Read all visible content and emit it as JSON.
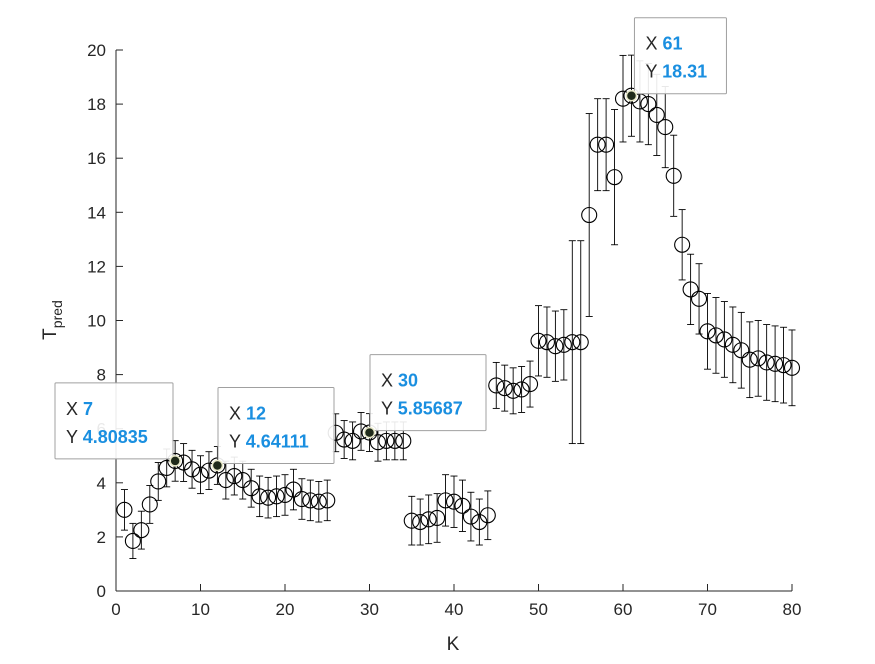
{
  "chart_data": {
    "type": "scatter",
    "title": "",
    "xlabel": "K",
    "ylabel": {
      "main": "T",
      "sub": "pred"
    },
    "xlim": [
      0,
      80
    ],
    "ylim": [
      0,
      20
    ],
    "xticks": [
      0,
      10,
      20,
      30,
      40,
      50,
      60,
      70,
      80
    ],
    "yticks": [
      0,
      2,
      4,
      6,
      8,
      10,
      12,
      14,
      16,
      18,
      20
    ],
    "grid": false,
    "marker": "open-circle",
    "error_bars": true,
    "colors": {
      "marker": "#000000",
      "axis": "#262626",
      "tip_value": "#1a8fe0",
      "tip_border": "#a0a0a0"
    },
    "points": [
      {
        "x": 1,
        "y": 3.0,
        "err": 0.75
      },
      {
        "x": 2,
        "y": 1.85,
        "err": 0.65
      },
      {
        "x": 3,
        "y": 2.25,
        "err": 0.7
      },
      {
        "x": 4,
        "y": 3.2,
        "err": 0.7
      },
      {
        "x": 5,
        "y": 4.05,
        "err": 0.7
      },
      {
        "x": 6,
        "y": 4.55,
        "err": 0.7
      },
      {
        "x": 7,
        "y": 4.80835,
        "err": 0.75
      },
      {
        "x": 8,
        "y": 4.75,
        "err": 0.7
      },
      {
        "x": 9,
        "y": 4.5,
        "err": 0.7
      },
      {
        "x": 10,
        "y": 4.3,
        "err": 0.7
      },
      {
        "x": 11,
        "y": 4.45,
        "err": 0.7
      },
      {
        "x": 12,
        "y": 4.64111,
        "err": 0.7
      },
      {
        "x": 13,
        "y": 4.1,
        "err": 0.7
      },
      {
        "x": 14,
        "y": 4.25,
        "err": 0.7
      },
      {
        "x": 15,
        "y": 4.1,
        "err": 0.7
      },
      {
        "x": 16,
        "y": 3.8,
        "err": 0.7
      },
      {
        "x": 17,
        "y": 3.5,
        "err": 0.75
      },
      {
        "x": 18,
        "y": 3.45,
        "err": 0.75
      },
      {
        "x": 19,
        "y": 3.5,
        "err": 0.75
      },
      {
        "x": 20,
        "y": 3.55,
        "err": 0.75
      },
      {
        "x": 21,
        "y": 3.75,
        "err": 0.75
      },
      {
        "x": 22,
        "y": 3.4,
        "err": 0.75
      },
      {
        "x": 23,
        "y": 3.35,
        "err": 0.75
      },
      {
        "x": 24,
        "y": 3.3,
        "err": 0.75
      },
      {
        "x": 25,
        "y": 3.35,
        "err": 0.75
      },
      {
        "x": 26,
        "y": 5.85,
        "err": 0.7
      },
      {
        "x": 27,
        "y": 5.6,
        "err": 0.7
      },
      {
        "x": 28,
        "y": 5.55,
        "err": 0.7
      },
      {
        "x": 29,
        "y": 5.9,
        "err": 0.7
      },
      {
        "x": 30,
        "y": 5.85687,
        "err": 0.7
      },
      {
        "x": 31,
        "y": 5.5,
        "err": 0.7
      },
      {
        "x": 32,
        "y": 5.55,
        "err": 0.7
      },
      {
        "x": 33,
        "y": 5.55,
        "err": 0.7
      },
      {
        "x": 34,
        "y": 5.55,
        "err": 0.7
      },
      {
        "x": 35,
        "y": 2.6,
        "err": 0.9
      },
      {
        "x": 36,
        "y": 2.55,
        "err": 0.85
      },
      {
        "x": 37,
        "y": 2.65,
        "err": 0.9
      },
      {
        "x": 38,
        "y": 2.7,
        "err": 0.9
      },
      {
        "x": 39,
        "y": 3.35,
        "err": 0.95
      },
      {
        "x": 40,
        "y": 3.3,
        "err": 0.95
      },
      {
        "x": 41,
        "y": 3.15,
        "err": 0.95
      },
      {
        "x": 42,
        "y": 2.75,
        "err": 0.9
      },
      {
        "x": 43,
        "y": 2.55,
        "err": 0.85
      },
      {
        "x": 44,
        "y": 2.8,
        "err": 0.9
      },
      {
        "x": 45,
        "y": 7.6,
        "err": 0.85
      },
      {
        "x": 46,
        "y": 7.5,
        "err": 0.85
      },
      {
        "x": 47,
        "y": 7.4,
        "err": 0.85
      },
      {
        "x": 48,
        "y": 7.45,
        "err": 0.85
      },
      {
        "x": 49,
        "y": 7.65,
        "err": 0.85
      },
      {
        "x": 50,
        "y": 9.25,
        "err": 1.3
      },
      {
        "x": 51,
        "y": 9.2,
        "err": 1.3
      },
      {
        "x": 52,
        "y": 9.05,
        "err": 1.3
      },
      {
        "x": 53,
        "y": 9.1,
        "err": 1.3
      },
      {
        "x": 54,
        "y": 9.2,
        "err": 3.75
      },
      {
        "x": 55,
        "y": 9.2,
        "err": 3.75
      },
      {
        "x": 56,
        "y": 13.9,
        "err": 3.75
      },
      {
        "x": 57,
        "y": 16.5,
        "err": 1.7
      },
      {
        "x": 58,
        "y": 16.5,
        "err": 1.7
      },
      {
        "x": 59,
        "y": 15.3,
        "err": 2.5
      },
      {
        "x": 60,
        "y": 18.2,
        "err": 1.6
      },
      {
        "x": 61,
        "y": 18.31,
        "err": 1.5
      },
      {
        "x": 62,
        "y": 18.1,
        "err": 1.5
      },
      {
        "x": 63,
        "y": 18.0,
        "err": 1.5
      },
      {
        "x": 64,
        "y": 17.6,
        "err": 1.5
      },
      {
        "x": 65,
        "y": 17.15,
        "err": 1.5
      },
      {
        "x": 66,
        "y": 15.35,
        "err": 1.5
      },
      {
        "x": 67,
        "y": 12.8,
        "err": 1.3
      },
      {
        "x": 68,
        "y": 11.15,
        "err": 1.3
      },
      {
        "x": 69,
        "y": 10.8,
        "err": 1.3
      },
      {
        "x": 70,
        "y": 9.6,
        "err": 1.4
      },
      {
        "x": 71,
        "y": 9.45,
        "err": 1.4
      },
      {
        "x": 72,
        "y": 9.3,
        "err": 1.4
      },
      {
        "x": 73,
        "y": 9.1,
        "err": 1.4
      },
      {
        "x": 74,
        "y": 8.9,
        "err": 1.4
      },
      {
        "x": 75,
        "y": 8.55,
        "err": 1.4
      },
      {
        "x": 76,
        "y": 8.6,
        "err": 1.4
      },
      {
        "x": 77,
        "y": 8.45,
        "err": 1.4
      },
      {
        "x": 78,
        "y": 8.4,
        "err": 1.4
      },
      {
        "x": 79,
        "y": 8.35,
        "err": 1.4
      },
      {
        "x": 80,
        "y": 8.25,
        "err": 1.4
      }
    ],
    "datatips": [
      {
        "x_label": "X",
        "x_value": "7",
        "y_label": "Y",
        "y_value": "4.80835",
        "at_x": 7,
        "at_y": 4.80835
      },
      {
        "x_label": "X",
        "x_value": "12",
        "y_label": "Y",
        "y_value": "4.64111",
        "at_x": 12,
        "at_y": 4.64111
      },
      {
        "x_label": "X",
        "x_value": "30",
        "y_label": "Y",
        "y_value": "5.85687",
        "at_x": 30,
        "at_y": 5.85687
      },
      {
        "x_label": "X",
        "x_value": "61",
        "y_label": "Y",
        "y_value": "18.31",
        "at_x": 61,
        "at_y": 18.31
      }
    ]
  }
}
